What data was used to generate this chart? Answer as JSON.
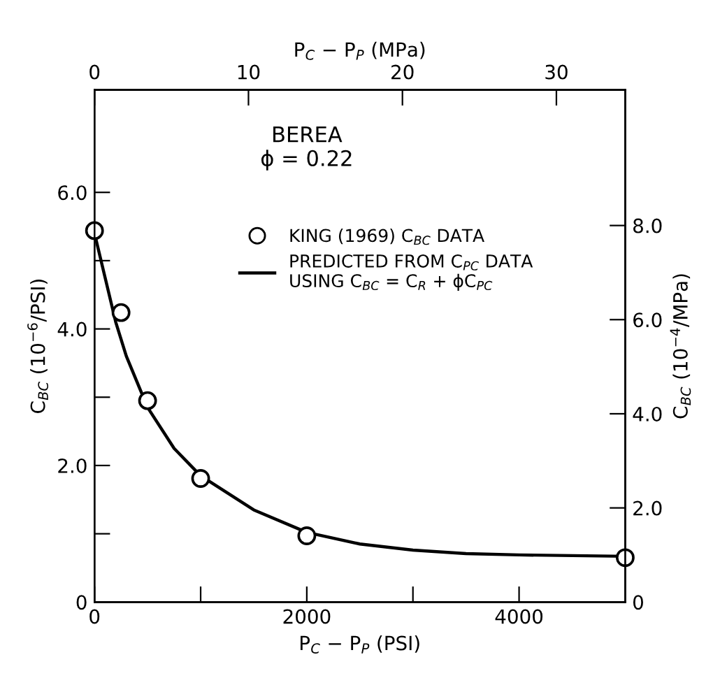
{
  "chart_data": {
    "type": "line",
    "xlabel": "P$_{C}$ − P$_{P}$ (PSI)",
    "ylabel": "C$_{BC}$ (10$^{−6}$/PSI)",
    "x2label": "P$_{C}$ − P$_{P}$ (MPa)",
    "y2label": "C$_{BC}$ (10$^{−4}$/MPa)",
    "annotations": [
      "BEREA\nϕ = 0.22"
    ],
    "xlim": [
      0,
      5000
    ],
    "xticks": [
      0,
      {
        "value": 1000,
        "label": null
      },
      2000,
      {
        "value": 3000,
        "label": null
      },
      4000
    ],
    "ylim": [
      0,
      7.5
    ],
    "yticks": [
      0,
      {
        "value": 1,
        "label": null
      },
      {
        "value": 2,
        "label": "2.0"
      },
      {
        "value": 3,
        "label": null
      },
      {
        "value": 4,
        "label": "4.0"
      },
      {
        "value": 5,
        "label": null
      },
      {
        "value": 6,
        "label": "6.0"
      }
    ],
    "x2lim": [
      0,
      34.47
    ],
    "x2ticks": [
      0,
      10,
      20,
      30
    ],
    "y2lim": [
      0,
      10.88
    ],
    "y2ticks": [
      0,
      {
        "value": 2,
        "label": "2.0"
      },
      {
        "value": 4,
        "label": "4.0"
      },
      {
        "value": 6,
        "label": "6.0"
      },
      {
        "value": 8,
        "label": "8.0"
      }
    ],
    "legend": "top",
    "grid": false,
    "series": [
      {
        "name": "KING (1969) C$_{BC}$ DATA",
        "type": "scatter",
        "marker": "circle",
        "color": "#000000",
        "x": [
          0,
          250,
          500,
          1000,
          2000,
          5000
        ],
        "values": [
          5.44,
          4.24,
          2.95,
          1.81,
          0.97,
          0.65
        ]
      },
      {
        "name": "PREDICTED FROM C$_{PC}$ DATA\nUSING C$_{BC}$ = C$_{R}$ + ϕC$_{PC}$",
        "line_style": "solid",
        "color": "#000000",
        "x": [
          0,
          100,
          200,
          300,
          500,
          750,
          1000,
          1500,
          2000,
          2500,
          3000,
          3500,
          4000,
          5000
        ],
        "values": [
          5.4,
          4.75,
          4.1,
          3.6,
          2.85,
          2.25,
          1.85,
          1.35,
          1.02,
          0.85,
          0.76,
          0.71,
          0.69,
          0.67
        ]
      }
    ]
  }
}
